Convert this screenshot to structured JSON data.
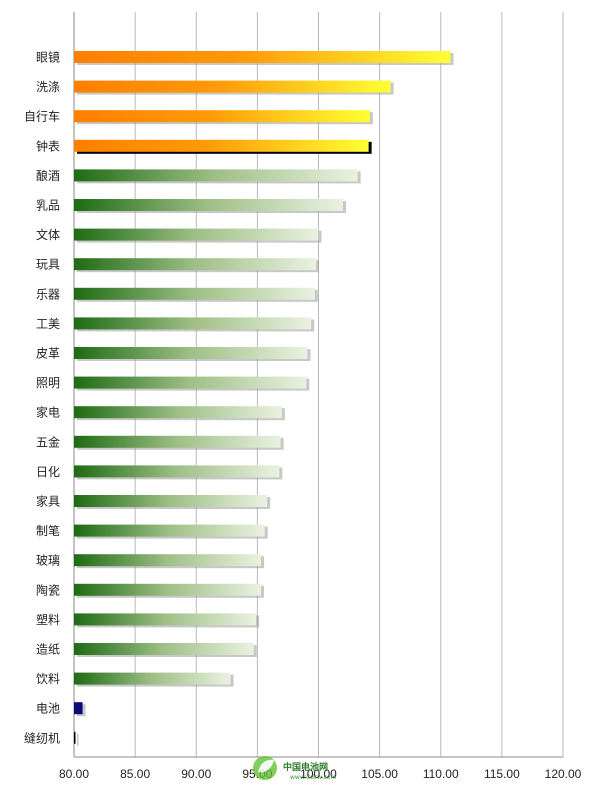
{
  "chart_data": {
    "type": "bar",
    "orientation": "horizontal",
    "categories": [
      "眼镜",
      "洗涤",
      "自行车",
      "钟表",
      "酿酒",
      "乳品",
      "文体",
      "玩具",
      "乐器",
      "工美",
      "皮革",
      "照明",
      "家电",
      "五金",
      "日化",
      "家具",
      "制笔",
      "玻璃",
      "陶瓷",
      "塑料",
      "造纸",
      "饮料",
      "电池",
      "缝纫机"
    ],
    "values": [
      110.8,
      105.9,
      104.2,
      104.1,
      103.2,
      102.0,
      100.0,
      99.8,
      99.7,
      99.4,
      99.1,
      99.0,
      97.0,
      96.9,
      96.8,
      95.8,
      95.6,
      95.3,
      95.3,
      94.9,
      94.7,
      92.8,
      80.7,
      80.1
    ],
    "highlight": [
      "orange",
      "orange",
      "orange",
      "orange-outlined",
      "green",
      "green",
      "green",
      "green",
      "green",
      "green",
      "green",
      "green",
      "green",
      "green",
      "green",
      "green",
      "green",
      "green",
      "green",
      "green",
      "green",
      "green",
      "navy",
      "black"
    ],
    "xlim": [
      80,
      120
    ],
    "xticks": [
      "80.00",
      "85.00",
      "90.00",
      "95.00",
      "100.00",
      "105.00",
      "110.00",
      "115.00",
      "120.00"
    ],
    "grid": true,
    "colors": {
      "orange_start": "#ff7f00",
      "orange_end": "#ffff33",
      "green_start": "#1e6b14",
      "green_end": "#e6f0dc",
      "navy": "#0a0a78",
      "black": "#000000",
      "grid": "#b9b9b9"
    }
  },
  "watermark": {
    "text": "中国电池网",
    "sub": "www.itdcw.com",
    "icon": "leaf-logo-icon"
  }
}
